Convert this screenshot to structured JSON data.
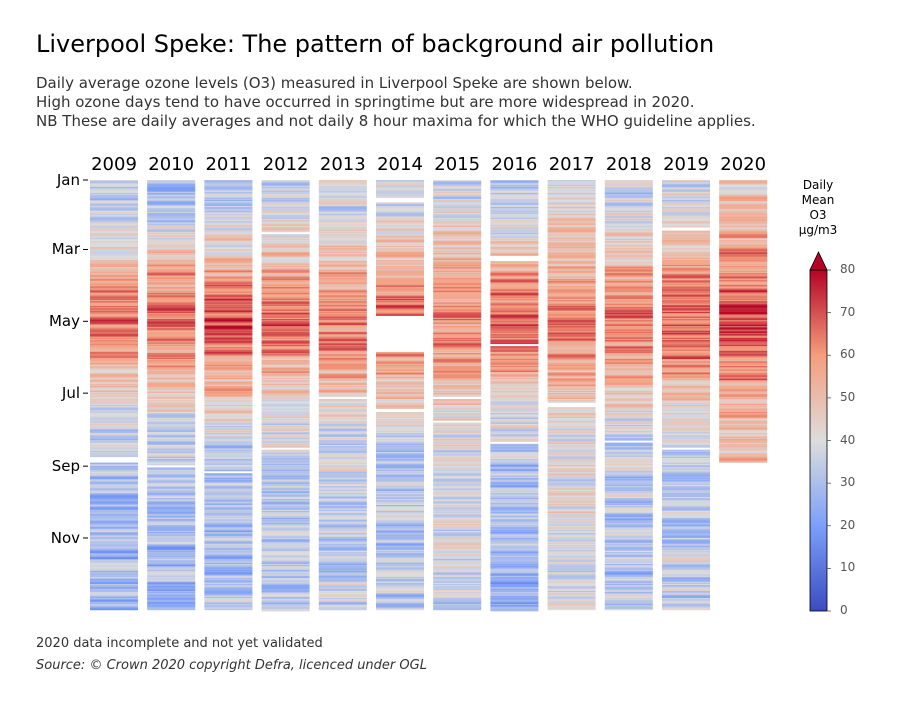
{
  "chart_data": {
    "type": "heatmap",
    "title": "Liverpool Speke: The pattern of background air pollution",
    "subtitle_lines": [
      "Daily average ozone levels (O3) measured in Liverpool Speke are shown below.",
      "High ozone days tend to have occurred in springtime but are more widespread in 2020.",
      "NB These are daily averages and not daily 8 hour maxima for which the WHO guideline applies."
    ],
    "x_categories": [
      "2009",
      "2010",
      "2011",
      "2012",
      "2013",
      "2014",
      "2015",
      "2016",
      "2017",
      "2018",
      "2019",
      "2020"
    ],
    "y_tick_labels": [
      "Jan",
      "Mar",
      "May",
      "Jul",
      "Sep",
      "Nov"
    ],
    "y_tick_days": [
      1,
      60,
      121,
      182,
      244,
      305
    ],
    "colorbar": {
      "label_lines": [
        "Daily",
        "Mean",
        "O3",
        "µg/m3"
      ],
      "ticks": [
        0,
        10,
        20,
        30,
        40,
        50,
        60,
        70,
        80
      ],
      "range": [
        0,
        80
      ],
      "colormap": "coolwarm",
      "extend": "max"
    },
    "series": [
      {
        "year": "2009",
        "days": 365,
        "gaps": [
          [
            236,
            240
          ]
        ],
        "spring_peak": 64,
        "winter_level": 28
      },
      {
        "year": "2010",
        "days": 365,
        "gaps": [
          [
            243,
            244
          ]
        ],
        "spring_peak": 66,
        "winter_level": 28
      },
      {
        "year": "2011",
        "days": 365,
        "gaps": [
          [
            248,
            249
          ]
        ],
        "spring_peak": 70,
        "winter_level": 30
      },
      {
        "year": "2012",
        "days": 366,
        "gaps": [
          [
            45,
            46
          ],
          [
            228,
            229
          ]
        ],
        "spring_peak": 66,
        "winter_level": 32
      },
      {
        "year": "2013",
        "days": 365,
        "gaps": [
          [
            185,
            186
          ]
        ],
        "spring_peak": 64,
        "winter_level": 34
      },
      {
        "year": "2014",
        "days": 365,
        "gaps": [
          [
            16,
            19
          ],
          [
            116,
            146
          ],
          [
            195,
            197
          ]
        ],
        "spring_peak": 66,
        "winter_level": 32
      },
      {
        "year": "2015",
        "days": 365,
        "gaps": [
          [
            185,
            186
          ],
          [
            205,
            206
          ]
        ],
        "spring_peak": 62,
        "winter_level": 36
      },
      {
        "year": "2016",
        "days": 366,
        "gaps": [
          [
            65,
            69
          ],
          [
            140,
            141
          ],
          [
            223,
            224
          ]
        ],
        "spring_peak": 66,
        "winter_level": 28
      },
      {
        "year": "2017",
        "days": 365,
        "gaps": [
          [
            190,
            193
          ]
        ],
        "spring_peak": 62,
        "winter_level": 40
      },
      {
        "year": "2018",
        "days": 365,
        "gaps": [
          [
            222,
            223
          ]
        ],
        "spring_peak": 64,
        "winter_level": 32
      },
      {
        "year": "2019",
        "days": 365,
        "gaps": [
          [
            41,
            43
          ],
          [
            228,
            229
          ]
        ],
        "spring_peak": 68,
        "winter_level": 34
      },
      {
        "year": "2020",
        "days": 240,
        "gaps": [],
        "spring_peak": 70,
        "winter_level": 46
      }
    ]
  },
  "footnote": "2020 data incomplete and not yet validated",
  "source": "Source: © Crown 2020 copyright Defra,  licenced under OGL"
}
